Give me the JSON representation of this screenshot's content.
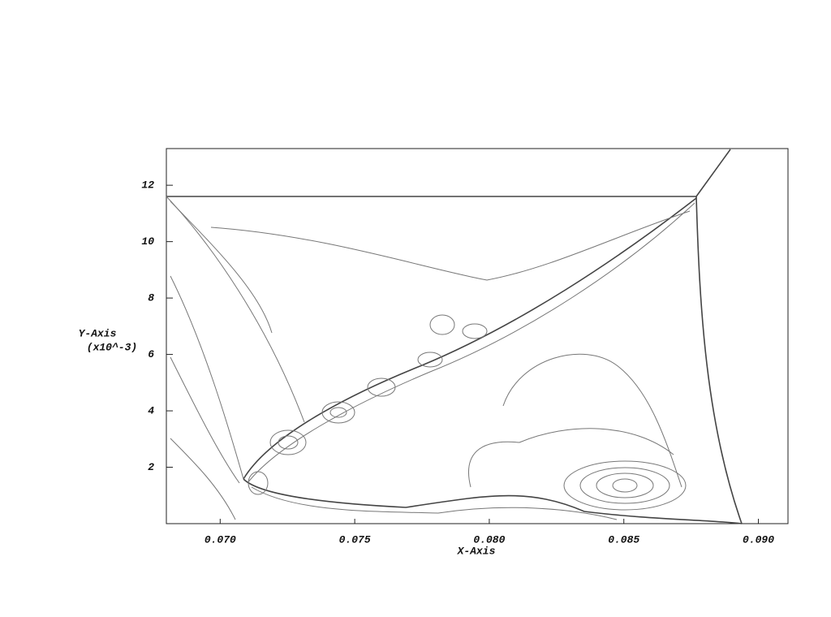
{
  "chart_data": {
    "type": "contour",
    "x_label": "X-Axis",
    "y_label": "Y-Axis",
    "y_unit": "(x10^-3)",
    "xlim": [
      0.068,
      0.0911
    ],
    "ylim": [
      0,
      13.3
    ],
    "xticks": [
      {
        "value": 0.07,
        "label": "0.070"
      },
      {
        "value": 0.075,
        "label": "0.075"
      },
      {
        "value": 0.08,
        "label": "0.080"
      },
      {
        "value": 0.085,
        "label": "0.085"
      },
      {
        "value": 0.09,
        "label": "0.090"
      }
    ],
    "yticks": [
      2,
      4,
      6,
      8,
      10,
      12
    ]
  }
}
